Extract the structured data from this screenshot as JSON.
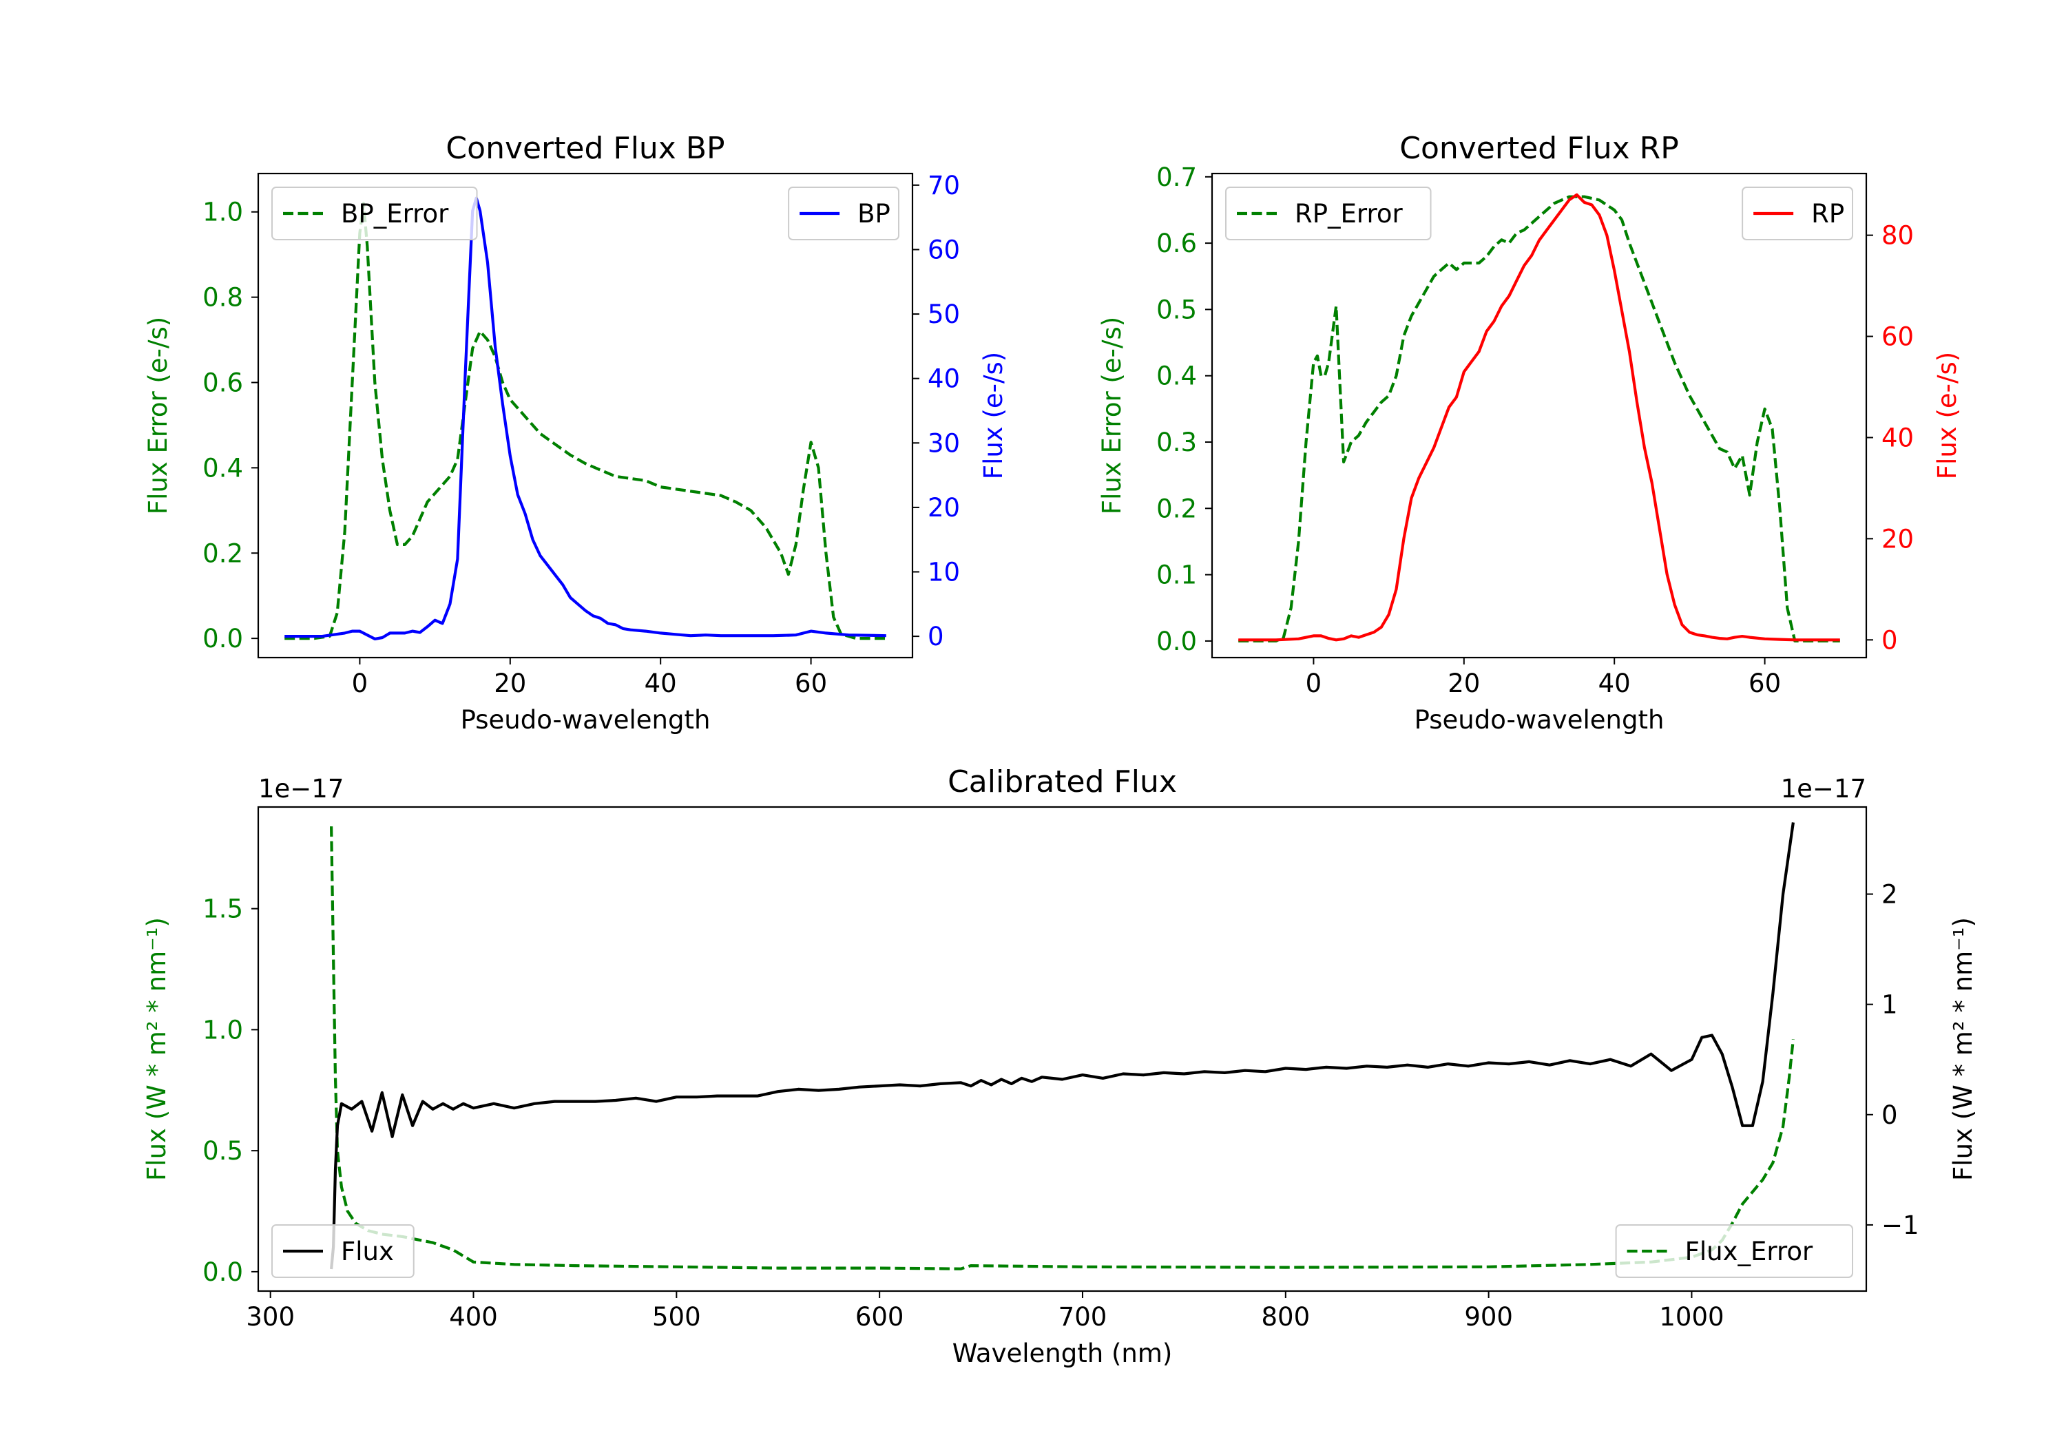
{
  "colors": {
    "error": "#008000",
    "bp": "#0000ff",
    "rp": "#ff0000",
    "flux": "#000000",
    "axis": "#000000",
    "legend_border": "#cccccc"
  },
  "chart_data": [
    {
      "id": "bp",
      "type": "line",
      "title": "Converted Flux BP",
      "xlabel": "Pseudo-wavelength",
      "xlim": [
        -13.5,
        73.5
      ],
      "xticks": [
        0,
        20,
        40,
        60
      ],
      "left_axis": {
        "label": "Flux Error (e-/s)",
        "lim": [
          -0.045,
          1.09
        ],
        "ticks": [
          0.0,
          0.2,
          0.4,
          0.6,
          0.8,
          1.0
        ],
        "tick_labels": [
          "0.0",
          "0.2",
          "0.4",
          "0.6",
          "0.8",
          "1.0"
        ],
        "color_key": "error"
      },
      "right_axis": {
        "label": "Flux (e-/s)",
        "lim": [
          -3.3,
          71.8
        ],
        "ticks": [
          0,
          10,
          20,
          30,
          40,
          50,
          60,
          70
        ],
        "tick_labels": [
          "0",
          "10",
          "20",
          "30",
          "40",
          "50",
          "60",
          "70"
        ],
        "color_key": "bp"
      },
      "series": [
        {
          "name": "BP_Error",
          "axis": "left",
          "style": "dashed",
          "color_key": "error",
          "x": [
            -10,
            -6,
            -4,
            -3,
            -2,
            -1,
            0,
            0.5,
            1,
            2,
            3,
            4,
            5,
            6,
            7,
            8,
            9,
            10,
            11,
            12,
            13,
            14,
            15,
            16,
            17,
            18,
            19,
            20,
            22,
            24,
            26,
            28,
            30,
            32,
            34,
            36,
            38,
            40,
            42,
            44,
            46,
            48,
            50,
            52,
            54,
            56,
            57,
            58,
            59,
            60,
            61,
            62,
            63,
            64,
            66,
            68,
            70
          ],
          "y": [
            0.0,
            0.0,
            0.005,
            0.06,
            0.25,
            0.6,
            0.95,
            1.02,
            0.92,
            0.6,
            0.42,
            0.3,
            0.22,
            0.22,
            0.24,
            0.28,
            0.32,
            0.34,
            0.36,
            0.38,
            0.42,
            0.55,
            0.68,
            0.72,
            0.7,
            0.66,
            0.6,
            0.56,
            0.52,
            0.48,
            0.455,
            0.43,
            0.41,
            0.395,
            0.38,
            0.375,
            0.37,
            0.355,
            0.35,
            0.345,
            0.34,
            0.335,
            0.32,
            0.3,
            0.26,
            0.2,
            0.15,
            0.22,
            0.35,
            0.46,
            0.4,
            0.2,
            0.05,
            0.01,
            0.0,
            0.0,
            0.0
          ]
        },
        {
          "name": "BP",
          "axis": "right",
          "style": "solid",
          "color_key": "bp",
          "x": [
            -10,
            -5,
            -2,
            -1,
            0,
            1,
            2,
            3,
            4,
            5,
            6,
            7,
            8,
            9,
            10,
            11,
            12,
            13,
            14,
            15,
            15.5,
            16,
            17,
            18,
            19,
            20,
            21,
            22,
            23,
            24,
            25,
            26,
            27,
            28,
            29,
            30,
            31,
            32,
            33,
            34,
            35,
            36,
            38,
            40,
            42,
            44,
            46,
            48,
            50,
            55,
            58,
            60,
            62,
            65,
            70
          ],
          "y": [
            0,
            0,
            0.5,
            0.8,
            0.8,
            0.2,
            -0.4,
            -0.2,
            0.5,
            0.5,
            0.5,
            0.8,
            0.6,
            1.5,
            2.5,
            2.0,
            5.0,
            12.0,
            40.0,
            66.0,
            68.0,
            66.0,
            58.0,
            45.0,
            36.0,
            28.0,
            22.0,
            19.0,
            15.0,
            12.5,
            11.0,
            9.5,
            8.0,
            6.0,
            5.0,
            4.0,
            3.2,
            2.8,
            2.0,
            1.8,
            1.2,
            1.0,
            0.8,
            0.5,
            0.3,
            0.1,
            0.2,
            0.1,
            0.1,
            0.1,
            0.2,
            0.8,
            0.5,
            0.2,
            0.1
          ]
        }
      ],
      "legends": [
        {
          "position": "upper-left",
          "entries": [
            "BP_Error"
          ]
        },
        {
          "position": "upper-right",
          "entries": [
            "BP"
          ]
        }
      ]
    },
    {
      "id": "rp",
      "type": "line",
      "title": "Converted Flux RP",
      "xlabel": "Pseudo-wavelength",
      "xlim": [
        -13.5,
        73.5
      ],
      "xticks": [
        0,
        20,
        40,
        60
      ],
      "left_axis": {
        "label": "Flux Error (e-/s)",
        "lim": [
          -0.025,
          0.705
        ],
        "ticks": [
          0.0,
          0.1,
          0.2,
          0.3,
          0.4,
          0.5,
          0.6,
          0.7
        ],
        "tick_labels": [
          "0.0",
          "0.1",
          "0.2",
          "0.3",
          "0.4",
          "0.5",
          "0.6",
          "0.7"
        ],
        "color_key": "error"
      },
      "right_axis": {
        "label": "Flux (e-/s)",
        "lim": [
          -3.5,
          92.2
        ],
        "ticks": [
          0,
          20,
          40,
          60,
          80
        ],
        "tick_labels": [
          "0",
          "20",
          "40",
          "60",
          "80"
        ],
        "color_key": "rp"
      },
      "series": [
        {
          "name": "RP_Error",
          "axis": "left",
          "style": "dashed",
          "color_key": "error",
          "x": [
            -10,
            -5,
            -4,
            -3,
            -2,
            -1,
            0,
            0.5,
            1,
            1.5,
            2,
            3,
            4,
            5,
            6,
            7,
            8,
            9,
            10,
            11,
            12,
            13,
            14,
            15,
            16,
            17,
            18,
            19,
            20,
            21,
            22,
            23,
            24,
            25,
            26,
            27,
            28,
            30,
            32,
            34,
            36,
            38,
            40,
            41,
            42,
            44,
            46,
            48,
            50,
            52,
            54,
            55,
            56,
            57,
            58,
            59,
            60,
            61,
            62,
            63,
            64,
            66,
            70
          ],
          "y": [
            0.0,
            0.0,
            0.005,
            0.05,
            0.15,
            0.3,
            0.42,
            0.43,
            0.4,
            0.4,
            0.42,
            0.505,
            0.27,
            0.3,
            0.31,
            0.33,
            0.345,
            0.36,
            0.37,
            0.4,
            0.46,
            0.49,
            0.51,
            0.53,
            0.55,
            0.56,
            0.57,
            0.56,
            0.57,
            0.57,
            0.57,
            0.58,
            0.595,
            0.605,
            0.6,
            0.615,
            0.62,
            0.64,
            0.66,
            0.67,
            0.67,
            0.665,
            0.65,
            0.635,
            0.6,
            0.54,
            0.48,
            0.42,
            0.37,
            0.33,
            0.29,
            0.285,
            0.26,
            0.28,
            0.22,
            0.3,
            0.35,
            0.32,
            0.2,
            0.05,
            0.0,
            0.0,
            0.0
          ]
        },
        {
          "name": "RP",
          "axis": "right",
          "style": "solid",
          "color_key": "rp",
          "x": [
            -10,
            -5,
            -2,
            0,
            1,
            2,
            3,
            4,
            5,
            6,
            7,
            8,
            9,
            10,
            11,
            12,
            13,
            14,
            15,
            16,
            17,
            18,
            19,
            20,
            21,
            22,
            23,
            24,
            25,
            26,
            27,
            28,
            29,
            30,
            31,
            32,
            33,
            34,
            35,
            36,
            37,
            38,
            39,
            40,
            41,
            42,
            43,
            44,
            45,
            46,
            47,
            48,
            49,
            50,
            51,
            52,
            53,
            54,
            55,
            56,
            57,
            58,
            60,
            62,
            64,
            66,
            70
          ],
          "y": [
            0,
            0,
            0.2,
            0.8,
            0.8,
            0.3,
            0.0,
            0.2,
            0.8,
            0.5,
            1.0,
            1.5,
            2.5,
            5.0,
            10.0,
            20.0,
            28.0,
            32.0,
            35.0,
            38.0,
            42.0,
            46.0,
            48.0,
            53.0,
            55.0,
            57.0,
            61.0,
            63.0,
            66.0,
            68.0,
            71.0,
            74.0,
            76.0,
            79.0,
            81.0,
            83.0,
            85.0,
            87.0,
            88.0,
            86.5,
            86.0,
            84.0,
            80.0,
            73.0,
            65.0,
            57.0,
            47.0,
            38.0,
            31.0,
            22.0,
            13.0,
            7.0,
            3.0,
            1.5,
            1.0,
            0.8,
            0.5,
            0.3,
            0.2,
            0.5,
            0.7,
            0.5,
            0.2,
            0.1,
            0.0,
            0.0,
            0.0
          ]
        }
      ],
      "legends": [
        {
          "position": "upper-left",
          "entries": [
            "RP_Error"
          ]
        },
        {
          "position": "upper-right",
          "entries": [
            "RP"
          ]
        }
      ]
    },
    {
      "id": "cal",
      "type": "line",
      "title": "Calibrated Flux",
      "xlabel": "Wavelength (nm)",
      "xlim": [
        294,
        1086
      ],
      "xticks": [
        300,
        400,
        500,
        600,
        700,
        800,
        900,
        1000
      ],
      "left_axis": {
        "label": "Flux (W * m² * nm⁻¹)",
        "lim": [
          -0.08,
          1.92
        ],
        "ticks": [
          0.0,
          0.5,
          1.0,
          1.5
        ],
        "tick_labels": [
          "0.0",
          "0.5",
          "1.0",
          "1.5"
        ],
        "offset_text": "1e−17",
        "color_key": "error"
      },
      "right_axis": {
        "label": "Flux (W * m² * nm⁻¹)",
        "lim": [
          -1.6,
          2.79
        ],
        "ticks": [
          -1,
          0,
          1,
          2
        ],
        "tick_labels": [
          "−1",
          "0",
          "1",
          "2"
        ],
        "offset_text": "1e−17",
        "color_key": "flux"
      },
      "series": [
        {
          "name": "Flux_Error",
          "axis": "left",
          "style": "dashed",
          "color_key": "error",
          "x": [
            330,
            331,
            332,
            333,
            335,
            338,
            342,
            348,
            355,
            365,
            380,
            390,
            400,
            420,
            450,
            500,
            550,
            600,
            640,
            645,
            700,
            800,
            900,
            950,
            980,
            1000,
            1010,
            1015,
            1020,
            1025,
            1030,
            1035,
            1040,
            1045,
            1048,
            1050
          ],
          "y": [
            1.84,
            1.3,
            0.8,
            0.5,
            0.35,
            0.25,
            0.2,
            0.17,
            0.155,
            0.145,
            0.12,
            0.09,
            0.04,
            0.03,
            0.025,
            0.02,
            0.015,
            0.015,
            0.012,
            0.025,
            0.02,
            0.018,
            0.02,
            0.03,
            0.04,
            0.06,
            0.09,
            0.13,
            0.2,
            0.28,
            0.33,
            0.38,
            0.45,
            0.6,
            0.8,
            0.96
          ]
        },
        {
          "name": "Flux",
          "axis": "right",
          "style": "solid",
          "color_key": "flux",
          "x": [
            330,
            331,
            332,
            333,
            335,
            340,
            345,
            350,
            355,
            360,
            365,
            370,
            375,
            380,
            385,
            390,
            395,
            400,
            410,
            420,
            430,
            440,
            450,
            460,
            470,
            480,
            490,
            500,
            510,
            520,
            530,
            540,
            550,
            560,
            570,
            580,
            590,
            600,
            610,
            620,
            630,
            640,
            645,
            650,
            655,
            660,
            665,
            670,
            675,
            680,
            690,
            700,
            710,
            720,
            730,
            740,
            750,
            760,
            770,
            780,
            790,
            800,
            810,
            820,
            830,
            840,
            850,
            860,
            870,
            880,
            890,
            900,
            910,
            920,
            930,
            940,
            950,
            960,
            970,
            980,
            990,
            1000,
            1005,
            1010,
            1015,
            1020,
            1025,
            1030,
            1035,
            1040,
            1045,
            1050
          ],
          "y": [
            -1.4,
            -1.2,
            -0.5,
            -0.1,
            0.1,
            0.05,
            0.12,
            -0.15,
            0.2,
            -0.2,
            0.18,
            -0.1,
            0.12,
            0.05,
            0.1,
            0.05,
            0.1,
            0.06,
            0.1,
            0.06,
            0.1,
            0.12,
            0.12,
            0.12,
            0.13,
            0.15,
            0.12,
            0.16,
            0.16,
            0.17,
            0.17,
            0.17,
            0.21,
            0.23,
            0.22,
            0.23,
            0.25,
            0.26,
            0.27,
            0.26,
            0.28,
            0.29,
            0.26,
            0.31,
            0.27,
            0.32,
            0.28,
            0.33,
            0.3,
            0.34,
            0.32,
            0.36,
            0.33,
            0.37,
            0.36,
            0.38,
            0.37,
            0.39,
            0.38,
            0.4,
            0.39,
            0.42,
            0.41,
            0.43,
            0.42,
            0.44,
            0.43,
            0.45,
            0.43,
            0.46,
            0.44,
            0.47,
            0.46,
            0.48,
            0.45,
            0.49,
            0.46,
            0.5,
            0.44,
            0.55,
            0.4,
            0.5,
            0.7,
            0.72,
            0.55,
            0.25,
            -0.1,
            -0.1,
            0.3,
            1.1,
            2.0,
            2.65
          ]
        }
      ],
      "legends": [
        {
          "position": "lower-left",
          "entries": [
            "Flux"
          ]
        },
        {
          "position": "lower-right",
          "entries": [
            "Flux_Error"
          ]
        }
      ]
    }
  ]
}
